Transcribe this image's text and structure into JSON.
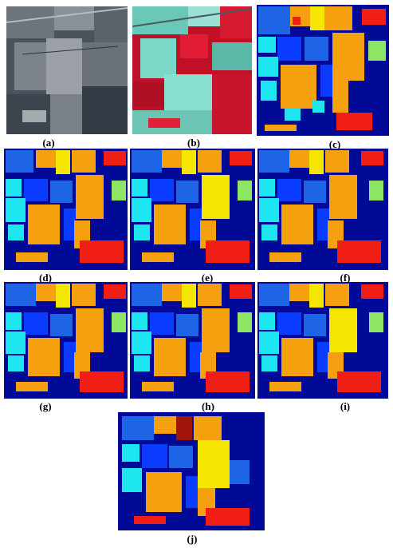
{
  "figure": {
    "panel_labels": {
      "a": "(a)",
      "b": "(b)",
      "c": "(c)",
      "d": "(d)",
      "e": "(e)",
      "f": "(f)",
      "g": "(g)",
      "h": "(h)",
      "i": "(i)",
      "j": "(j)"
    }
  },
  "colors": {
    "background_class": "#000a96",
    "orange": "#f5a00f",
    "yellow": "#f5e600",
    "cyan": "#1ee6f0",
    "blue": "#0a3cff",
    "mid_blue": "#1e64e6",
    "red": "#f01e14",
    "green": "#8ce664",
    "dark_red": "#a0140a",
    "gray_dark": "#3a4450",
    "gray_light": "#8a9098",
    "false_color_red": "#d0102a",
    "false_color_teal": "#7ad8c8"
  }
}
